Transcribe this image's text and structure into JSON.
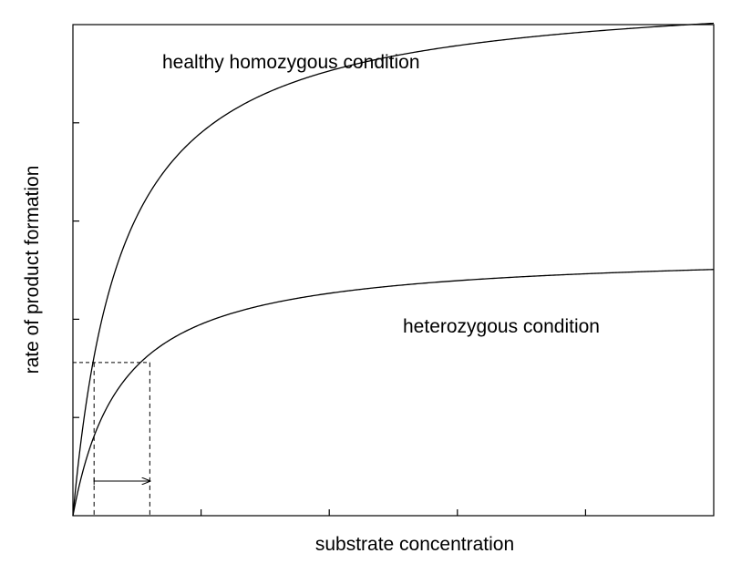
{
  "chart_data": {
    "type": "line",
    "title": "",
    "xlabel": "substrate concentration",
    "ylabel": "rate of product formation",
    "xlim": [
      0,
      10
    ],
    "ylim": [
      0,
      5
    ],
    "grid": false,
    "xticks": [
      2,
      4,
      6,
      8
    ],
    "yticks": [
      1,
      2,
      3,
      4
    ],
    "tick_labels_shown": false,
    "series": [
      {
        "name": "healthy homozygous condition",
        "vmax": 5.4,
        "km": 0.77,
        "x": [
          0,
          0.3,
          0.6,
          0.9,
          1.2,
          1.5,
          2,
          2.5,
          3,
          4,
          5,
          6,
          7,
          8,
          9,
          10
        ],
        "y": [
          0,
          1.51,
          2.37,
          2.91,
          3.29,
          3.57,
          3.91,
          4.14,
          4.3,
          4.52,
          4.68,
          4.79,
          4.86,
          4.93,
          4.97,
          5.01
        ]
      },
      {
        "name": "heterozygous condition",
        "vmax": 2.7,
        "km": 0.77,
        "x": [
          0,
          0.3,
          0.6,
          0.9,
          1.2,
          1.5,
          2,
          2.5,
          3,
          4,
          5,
          6,
          7,
          8,
          9,
          10
        ],
        "y": [
          0,
          0.76,
          1.18,
          1.46,
          1.64,
          1.78,
          1.95,
          2.06,
          2.15,
          2.26,
          2.34,
          2.39,
          2.43,
          2.46,
          2.49,
          2.51
        ]
      }
    ],
    "half_rate_guide": {
      "y": 1.56,
      "x_healthy": 0.33,
      "x_heterozygous": 1.2,
      "arrow": "from x_healthy to x_heterozygous"
    }
  }
}
